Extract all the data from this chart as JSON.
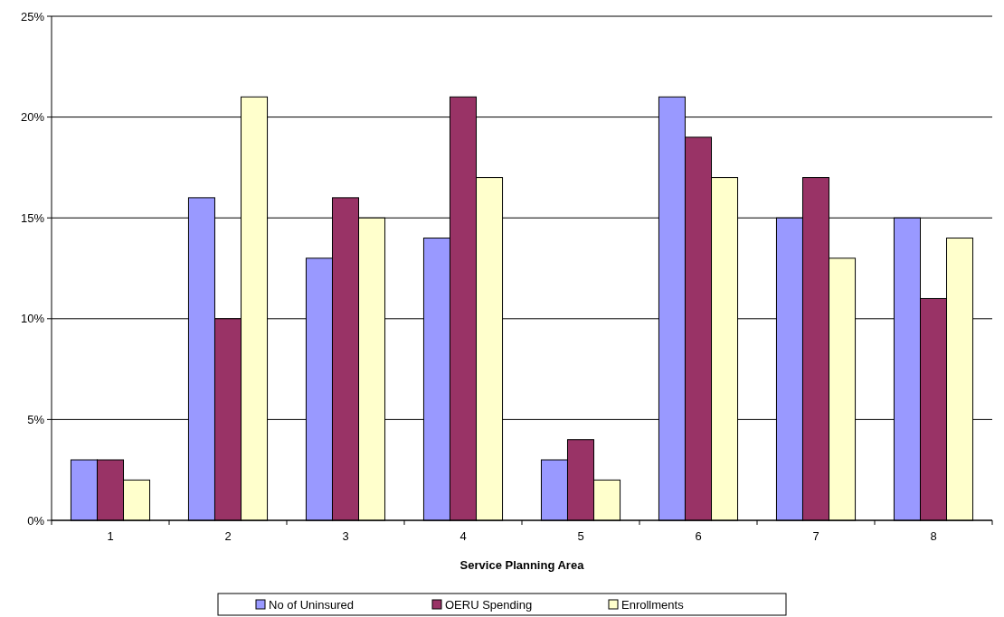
{
  "chart_data": {
    "type": "bar",
    "xlabel": "Service Planning Area",
    "categories": [
      "1",
      "2",
      "3",
      "4",
      "5",
      "6",
      "7",
      "8"
    ],
    "series": [
      {
        "name": "No of Uninsured",
        "color": "#9999ff",
        "values": [
          3,
          16,
          13,
          14,
          3,
          21,
          15,
          15
        ]
      },
      {
        "name": "OERU Spending",
        "color": "#993366",
        "values": [
          3,
          10,
          16,
          21,
          4,
          19,
          17,
          11
        ]
      },
      {
        "name": "Enrollments",
        "color": "#ffffcc",
        "values": [
          2,
          21,
          15,
          17,
          2,
          17,
          13,
          14
        ]
      }
    ],
    "ylim": [
      0,
      25
    ],
    "yticks": [
      {
        "value": 0,
        "label": "0%"
      },
      {
        "value": 5,
        "label": "5%"
      },
      {
        "value": 10,
        "label": "10%"
      },
      {
        "value": 15,
        "label": "15%"
      },
      {
        "value": 20,
        "label": "20%"
      },
      {
        "value": 25,
        "label": "25%"
      }
    ],
    "grid": "y",
    "legend": "bottom"
  }
}
